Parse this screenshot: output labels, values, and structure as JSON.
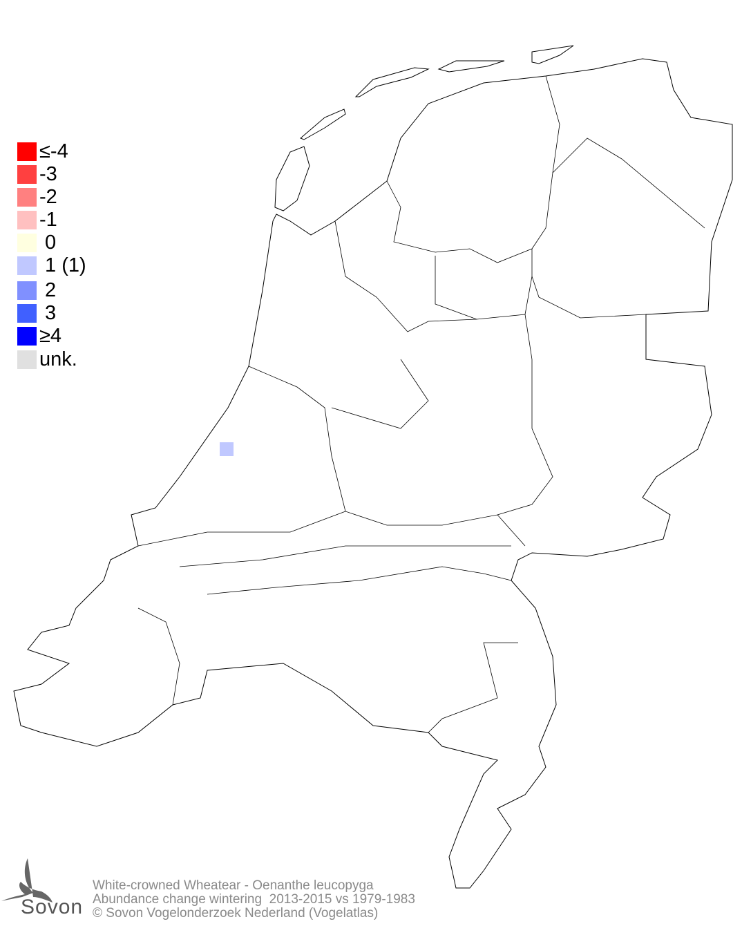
{
  "legend": {
    "items": [
      {
        "label": "≤-4",
        "color": "#ff0000"
      },
      {
        "label": "-3",
        "color": "#ff4040"
      },
      {
        "label": "-2",
        "color": "#ff8080"
      },
      {
        "label": "-1",
        "color": "#ffc0c0"
      },
      {
        "label": " 0",
        "color": "#ffffe0"
      },
      {
        "label": " 1 (1)",
        "color": "#c0c8ff"
      },
      {
        "label": " 2",
        "color": "#8090ff"
      },
      {
        "label": " 3",
        "color": "#4060ff"
      },
      {
        "label": "≥4",
        "color": "#0000ff"
      },
      {
        "label": "unk.",
        "color": "#e0e0e0"
      }
    ]
  },
  "map": {
    "country": "Netherlands",
    "observations": [
      {
        "class": "1",
        "color": "#c0c8ff"
      }
    ]
  },
  "footer": {
    "species": "White-crowned Wheatear - Oenanthe leucopyga",
    "subtitle": "Abundance change wintering  2013-2015 vs 1979-1983",
    "copyright": "© Sovon Vogelonderzoek Nederland (Vogelatlas)"
  },
  "logo": {
    "text": "Sovon"
  }
}
